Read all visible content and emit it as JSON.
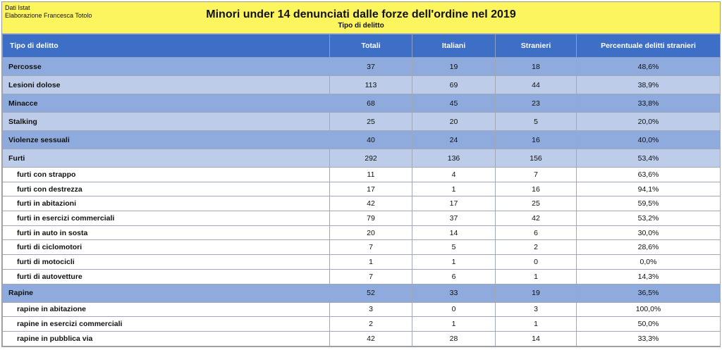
{
  "header": {
    "source_line1": "Dati Istat",
    "source_line2": "Elaborazione Francesca Totolo",
    "title": "Minori under 14 denunciati dalle forze dell'ordine nel 2019",
    "subtitle": "Tipo di delitto"
  },
  "colors": {
    "header_bg": "#fdf55e",
    "column_header_bg": "#3d6fc6",
    "row_dark": "#8fabdd",
    "row_light": "#bccce9",
    "row_sub": "#ffffff"
  },
  "chart_data": {
    "type": "table",
    "columns": [
      "Tipo di delitto",
      "Totali",
      "Italiani",
      "Stranieri",
      "Percentuale delitti stranieri"
    ],
    "rows": [
      {
        "style": "dark",
        "cells": [
          "Percosse",
          "37",
          "19",
          "18",
          "48,6%"
        ]
      },
      {
        "style": "light",
        "cells": [
          "Lesioni dolose",
          "113",
          "69",
          "44",
          "38,9%"
        ]
      },
      {
        "style": "dark",
        "cells": [
          "Minacce",
          "68",
          "45",
          "23",
          "33,8%"
        ]
      },
      {
        "style": "light",
        "cells": [
          "Stalking",
          "25",
          "20",
          "5",
          "20,0%"
        ]
      },
      {
        "style": "dark",
        "cells": [
          "Violenze sessuali",
          "40",
          "24",
          "16",
          "40,0%"
        ]
      },
      {
        "style": "light",
        "cells": [
          "Furti",
          "292",
          "136",
          "156",
          "53,4%"
        ]
      },
      {
        "style": "sub",
        "cells": [
          "furti con strappo",
          "11",
          "4",
          "7",
          "63,6%"
        ]
      },
      {
        "style": "sub",
        "cells": [
          "furti con destrezza",
          "17",
          "1",
          "16",
          "94,1%"
        ]
      },
      {
        "style": "sub",
        "cells": [
          "furti in abitazioni",
          "42",
          "17",
          "25",
          "59,5%"
        ]
      },
      {
        "style": "sub",
        "cells": [
          "furti in esercizi commerciali",
          "79",
          "37",
          "42",
          "53,2%"
        ]
      },
      {
        "style": "sub",
        "cells": [
          "furti in auto in sosta",
          "20",
          "14",
          "6",
          "30,0%"
        ]
      },
      {
        "style": "sub",
        "cells": [
          "furti di ciclomotori",
          "7",
          "5",
          "2",
          "28,6%"
        ]
      },
      {
        "style": "sub",
        "cells": [
          "furti di motocicli",
          "1",
          "1",
          "0",
          "0,0%"
        ]
      },
      {
        "style": "sub",
        "cells": [
          "furti di autovetture",
          "7",
          "6",
          "1",
          "14,3%"
        ]
      },
      {
        "style": "dark",
        "cells": [
          "Rapine",
          "52",
          "33",
          "19",
          "36,5%"
        ]
      },
      {
        "style": "sub",
        "cells": [
          "rapine in abitazione",
          "3",
          "0",
          "3",
          "100,0%"
        ]
      },
      {
        "style": "sub",
        "cells": [
          "rapine in esercizi commerciali",
          "2",
          "1",
          "1",
          "50,0%"
        ]
      },
      {
        "style": "sub",
        "cells": [
          "rapine in pubblica via",
          "42",
          "28",
          "14",
          "33,3%"
        ]
      }
    ]
  }
}
